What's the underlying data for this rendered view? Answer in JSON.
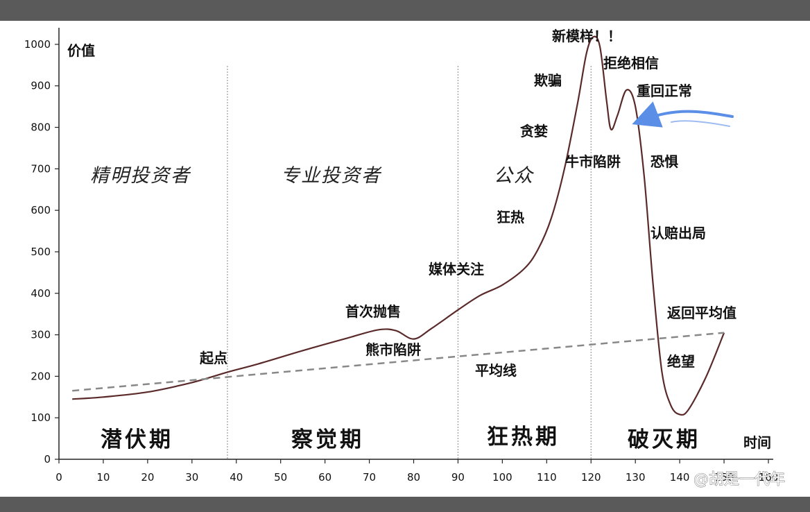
{
  "chart_data": {
    "type": "line",
    "ylabel": "价值",
    "xlabel": "时间",
    "xlim": [
      0,
      160
    ],
    "ylim": [
      0,
      1040
    ],
    "x_ticks": [
      0,
      10,
      20,
      30,
      40,
      50,
      60,
      70,
      80,
      90,
      100,
      110,
      120,
      130,
      140,
      150,
      160
    ],
    "x_tick_labels": [
      "0",
      "10",
      "20",
      "30",
      "40",
      "50",
      "60",
      "70",
      "80",
      "90",
      "100",
      "110",
      "120",
      "130",
      "140",
      "150",
      "160"
    ],
    "y_ticks": [
      0,
      100,
      200,
      300,
      400,
      500,
      600,
      700,
      800,
      900,
      1000
    ],
    "y_tick_labels": [
      "0",
      "100",
      "200",
      "300",
      "400",
      "500",
      "600",
      "700",
      "800",
      "900",
      "1000"
    ],
    "series": [
      {
        "name": "",
        "style": "solid",
        "color": "#5a2a2a",
        "points": [
          [
            3,
            145
          ],
          [
            10,
            150
          ],
          [
            20,
            162
          ],
          [
            30,
            185
          ],
          [
            38,
            210
          ],
          [
            45,
            230
          ],
          [
            55,
            262
          ],
          [
            65,
            292
          ],
          [
            72,
            312
          ],
          [
            76,
            310
          ],
          [
            80,
            290
          ],
          [
            84,
            315
          ],
          [
            90,
            360
          ],
          [
            95,
            395
          ],
          [
            100,
            420
          ],
          [
            105,
            460
          ],
          [
            108,
            505
          ],
          [
            111,
            580
          ],
          [
            114,
            700
          ],
          [
            117,
            860
          ],
          [
            119,
            980
          ],
          [
            120.5,
            1018
          ],
          [
            122,
            995
          ],
          [
            123.5,
            865
          ],
          [
            124.5,
            795
          ],
          [
            126,
            830
          ],
          [
            128,
            890
          ],
          [
            130,
            850
          ],
          [
            132,
            680
          ],
          [
            134,
            420
          ],
          [
            136,
            210
          ],
          [
            138,
            130
          ],
          [
            140,
            108
          ],
          [
            142,
            120
          ],
          [
            146,
            200
          ],
          [
            150,
            305
          ]
        ]
      },
      {
        "name": "",
        "style": "dashed",
        "color": "#888888",
        "points": [
          [
            3,
            165
          ],
          [
            150,
            305
          ]
        ]
      }
    ],
    "phase_dividers": [
      38,
      90,
      120
    ],
    "phases": [
      "潜伏期",
      "察觉期",
      "狂热期",
      "破灭期"
    ],
    "audiences": [
      "精明投资者",
      "专业投资者",
      "公众"
    ],
    "annotations": [
      "起点",
      "首次抛售",
      "熊市陷阱",
      "平均线",
      "媒体关注",
      "狂热",
      "贪婪",
      "欺骗",
      "新模样！！",
      "拒绝相信",
      "重回正常",
      "牛市陷阱",
      "恐惧",
      "认赔出局",
      "返回平均值",
      "绝望"
    ],
    "arrow_color": "#5b8ee6",
    "grid": false
  },
  "watermark": "@胡是一代年"
}
